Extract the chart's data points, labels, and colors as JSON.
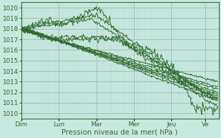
{
  "bg_color": "#c8e8e0",
  "line_color": "#2d6b2d",
  "grid_major_color": "#9dbfb8",
  "grid_minor_color": "#b8d8d0",
  "xlabel": "Pression niveau de la mer( hPa )",
  "ylim": [
    1009.5,
    1020.5
  ],
  "yticks": [
    1010,
    1011,
    1012,
    1013,
    1014,
    1015,
    1016,
    1017,
    1018,
    1019,
    1020
  ],
  "day_labels": [
    "Dim",
    "Lun",
    "Mar",
    "Mer",
    "Jeu",
    "Ve"
  ],
  "day_positions": [
    0,
    40,
    80,
    120,
    160,
    196
  ],
  "total_steps": 210,
  "axis_fontsize": 6.5
}
